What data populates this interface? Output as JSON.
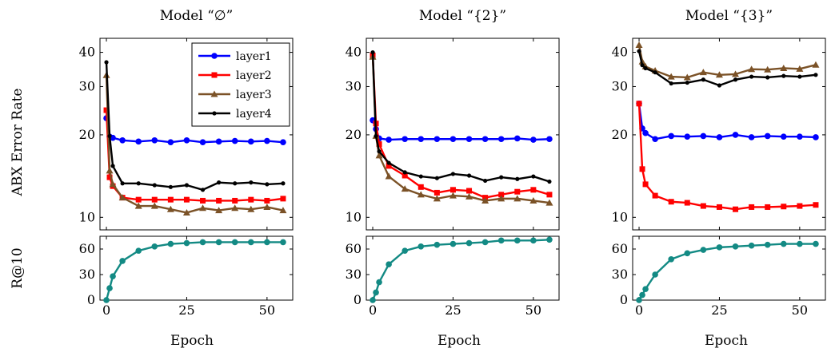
{
  "figure": {
    "ylabel_top": "ABX Error Rate",
    "ylabel_bottom": "R@10",
    "xlabel": "Epoch"
  },
  "colors": {
    "layer1": "#0000ff",
    "layer2": "#ff0000",
    "layer3": "#7b5227",
    "layer4": "#000000",
    "recall": "#138a84"
  },
  "chart_data": [
    {
      "type": "line",
      "panel": "top",
      "title": "Model “∅”",
      "xlim": [
        -2,
        58
      ],
      "ylim": [
        9,
        45
      ],
      "yscale": "log",
      "yticks": [
        10,
        20,
        30,
        40
      ],
      "xticks": [
        0,
        25,
        50
      ],
      "legend": "top-right",
      "series": [
        {
          "name": "layer1",
          "marker": "circle",
          "x": [
            0,
            1,
            2,
            5,
            10,
            15,
            20,
            25,
            30,
            35,
            40,
            45,
            50,
            55
          ],
          "values": [
            23,
            19.7,
            19.5,
            19.1,
            18.9,
            19.1,
            18.8,
            19.1,
            18.8,
            18.9,
            19.0,
            18.9,
            19.0,
            18.8
          ]
        },
        {
          "name": "layer2",
          "marker": "square",
          "x": [
            0,
            1,
            2,
            5,
            10,
            15,
            20,
            25,
            30,
            35,
            40,
            45,
            50,
            55
          ],
          "values": [
            24.6,
            14.0,
            13.0,
            11.8,
            11.6,
            11.6,
            11.6,
            11.6,
            11.5,
            11.5,
            11.5,
            11.6,
            11.5,
            11.7
          ]
        },
        {
          "name": "layer3",
          "marker": "triangle",
          "x": [
            0,
            1,
            2,
            5,
            10,
            15,
            20,
            25,
            30,
            35,
            40,
            45,
            50,
            55
          ],
          "values": [
            33.0,
            14.8,
            13.2,
            11.8,
            11.0,
            11.0,
            10.7,
            10.4,
            10.8,
            10.6,
            10.8,
            10.7,
            10.9,
            10.6
          ]
        },
        {
          "name": "layer4",
          "marker": "dot",
          "x": [
            0,
            1,
            2,
            5,
            10,
            15,
            20,
            25,
            30,
            35,
            40,
            45,
            50,
            55
          ],
          "values": [
            36.8,
            19.8,
            15.4,
            13.3,
            13.3,
            13.1,
            12.9,
            13.1,
            12.6,
            13.4,
            13.3,
            13.4,
            13.2,
            13.3
          ]
        }
      ]
    },
    {
      "type": "line",
      "panel": "top",
      "title": "Model “{2}”",
      "xlim": [
        -2,
        58
      ],
      "ylim": [
        9,
        45
      ],
      "yscale": "log",
      "yticks": [
        10,
        20,
        30,
        40
      ],
      "xticks": [
        0,
        25,
        50
      ],
      "series": [
        {
          "name": "layer1",
          "marker": "circle",
          "x": [
            0,
            1,
            2,
            5,
            10,
            15,
            20,
            25,
            30,
            35,
            40,
            45,
            50,
            55
          ],
          "values": [
            22.6,
            21.0,
            19.4,
            19.2,
            19.3,
            19.3,
            19.3,
            19.3,
            19.3,
            19.3,
            19.3,
            19.4,
            19.2,
            19.3
          ]
        },
        {
          "name": "layer2",
          "marker": "square",
          "x": [
            0,
            1,
            2,
            5,
            10,
            15,
            20,
            25,
            30,
            35,
            40,
            45,
            50,
            55
          ],
          "values": [
            39.0,
            22.0,
            18.5,
            15.4,
            14.2,
            12.9,
            12.3,
            12.6,
            12.5,
            11.8,
            12.1,
            12.4,
            12.6,
            12.1
          ]
        },
        {
          "name": "layer3",
          "marker": "triangle",
          "x": [
            0,
            1,
            2,
            5,
            10,
            15,
            20,
            25,
            30,
            35,
            40,
            45,
            50,
            55
          ],
          "values": [
            38.5,
            19.8,
            16.8,
            14.1,
            12.7,
            12.1,
            11.7,
            12.0,
            11.9,
            11.5,
            11.7,
            11.7,
            11.5,
            11.3
          ]
        },
        {
          "name": "layer4",
          "marker": "dot",
          "x": [
            0,
            1,
            2,
            5,
            10,
            15,
            20,
            25,
            30,
            35,
            40,
            45,
            50,
            55
          ],
          "values": [
            40.0,
            19.8,
            17.4,
            15.8,
            14.6,
            14.1,
            13.9,
            14.4,
            14.2,
            13.6,
            14.0,
            13.8,
            14.1,
            13.5
          ]
        }
      ]
    },
    {
      "type": "line",
      "panel": "top",
      "title": "Model “{3}”",
      "xlim": [
        -2,
        58
      ],
      "ylim": [
        9,
        45
      ],
      "yscale": "log",
      "yticks": [
        10,
        20,
        30,
        40
      ],
      "xticks": [
        0,
        25,
        50
      ],
      "series": [
        {
          "name": "layer1",
          "marker": "circle",
          "x": [
            0,
            1,
            2,
            5,
            10,
            15,
            20,
            25,
            30,
            35,
            40,
            45,
            50,
            55
          ],
          "values": [
            26.0,
            21.1,
            20.3,
            19.3,
            19.8,
            19.7,
            19.8,
            19.6,
            20.0,
            19.6,
            19.8,
            19.7,
            19.7,
            19.6
          ]
        },
        {
          "name": "layer2",
          "marker": "square",
          "x": [
            0,
            1,
            2,
            5,
            10,
            15,
            20,
            25,
            30,
            35,
            40,
            45,
            50,
            55
          ],
          "values": [
            26.0,
            15.0,
            13.2,
            12.0,
            11.4,
            11.3,
            11.0,
            10.9,
            10.7,
            10.9,
            10.9,
            10.95,
            11.0,
            11.1
          ]
        },
        {
          "name": "layer3",
          "marker": "triangle",
          "x": [
            0,
            1,
            2,
            5,
            10,
            15,
            20,
            25,
            30,
            35,
            40,
            45,
            50,
            55
          ],
          "values": [
            42.5,
            37.0,
            35.5,
            34.3,
            32.6,
            32.4,
            33.8,
            33.1,
            33.3,
            34.7,
            34.6,
            35.0,
            34.8,
            36.0
          ]
        },
        {
          "name": "layer4",
          "marker": "dot",
          "x": [
            0,
            1,
            2,
            5,
            10,
            15,
            20,
            25,
            30,
            35,
            40,
            45,
            50,
            55
          ],
          "values": [
            40.4,
            35.9,
            35.0,
            33.8,
            30.8,
            31.0,
            31.8,
            30.3,
            31.8,
            32.6,
            32.4,
            32.8,
            32.6,
            33.1
          ]
        }
      ]
    },
    {
      "type": "line",
      "panel": "bottom",
      "xlim": [
        -2,
        58
      ],
      "ylim": [
        0,
        75
      ],
      "yticks": [
        0,
        30,
        60
      ],
      "xticks": [
        0,
        25,
        50
      ],
      "series": [
        {
          "marker": "circle",
          "x": [
            0,
            1,
            2,
            5,
            10,
            15,
            20,
            25,
            30,
            35,
            40,
            45,
            50,
            55
          ],
          "values": [
            0,
            14,
            28,
            46,
            58,
            63,
            66,
            67,
            68,
            68,
            68,
            68,
            68,
            68
          ]
        }
      ]
    },
    {
      "type": "line",
      "panel": "bottom",
      "xlim": [
        -2,
        58
      ],
      "ylim": [
        0,
        75
      ],
      "yticks": [
        0,
        30,
        60
      ],
      "xticks": [
        0,
        25,
        50
      ],
      "series": [
        {
          "marker": "circle",
          "x": [
            0,
            1,
            2,
            5,
            10,
            15,
            20,
            25,
            30,
            35,
            40,
            45,
            50,
            55
          ],
          "values": [
            0,
            9,
            21,
            42,
            58,
            63,
            65,
            66,
            67,
            68,
            70,
            70,
            70,
            71
          ]
        }
      ]
    },
    {
      "type": "line",
      "panel": "bottom",
      "xlim": [
        -2,
        58
      ],
      "ylim": [
        0,
        75
      ],
      "yticks": [
        0,
        30,
        60
      ],
      "xticks": [
        0,
        25,
        50
      ],
      "series": [
        {
          "marker": "circle",
          "x": [
            0,
            1,
            2,
            5,
            10,
            15,
            20,
            25,
            30,
            35,
            40,
            45,
            50,
            55
          ],
          "values": [
            0,
            6,
            13,
            30,
            48,
            55,
            59,
            62,
            63,
            64,
            65,
            66,
            66,
            66
          ]
        }
      ]
    }
  ]
}
